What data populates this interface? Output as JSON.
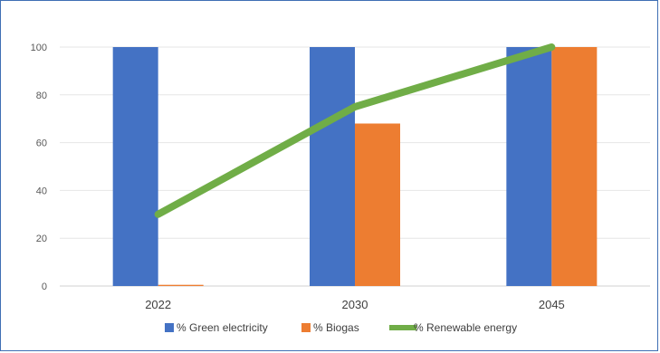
{
  "chart_data": {
    "type": "bar",
    "categories": [
      "2022",
      "2030",
      "2045"
    ],
    "series": [
      {
        "name": "% Green electricity",
        "type": "bar",
        "color": "#4472c4",
        "values": [
          100,
          100,
          100
        ]
      },
      {
        "name": "% Biogas",
        "type": "bar",
        "color": "#ed7d31",
        "values": [
          0.5,
          68,
          100
        ]
      },
      {
        "name": "% Renewable energy",
        "type": "line",
        "color": "#70ad47",
        "values": [
          30,
          75,
          100
        ]
      }
    ],
    "ylim": [
      0,
      100
    ],
    "yticks": [
      "0",
      "20",
      "40",
      "60",
      "80",
      "100"
    ],
    "grid": true,
    "legend_position": "bottom"
  }
}
